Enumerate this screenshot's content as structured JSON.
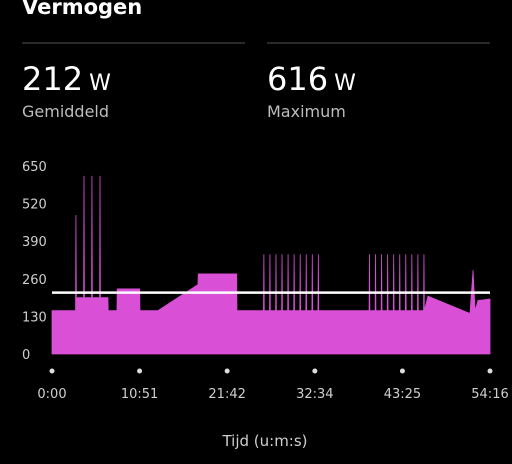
{
  "header": {
    "title": "Vermogen"
  },
  "stats": [
    {
      "value": 212,
      "unit": "W",
      "label": "Gemiddeld"
    },
    {
      "value": 616,
      "unit": "W",
      "label": "Maximum"
    }
  ],
  "chart_data": {
    "type": "area",
    "color": "#d94fd6",
    "x_label": "Tijd (u:m:s)",
    "xlim": [
      0,
      3256
    ],
    "xticks": [
      {
        "value": 0,
        "label": "0:00"
      },
      {
        "value": 651,
        "label": "10:51"
      },
      {
        "value": 1302,
        "label": "21:42"
      },
      {
        "value": 1954,
        "label": "32:34"
      },
      {
        "value": 2605,
        "label": "43:25"
      },
      {
        "value": 3256,
        "label": "54:16"
      }
    ],
    "ylim": [
      0,
      650
    ],
    "yticks": [
      0,
      130,
      260,
      390,
      520,
      650
    ],
    "x": [
      0,
      175,
      178,
      181,
      235,
      238,
      241,
      294,
      297,
      300,
      354,
      357,
      360,
      416,
      418,
      483,
      485,
      652,
      654,
      788,
      1085,
      1087,
      1373,
      1375,
      1572,
      1575,
      1578,
      1617,
      1620,
      1623,
      1662,
      1665,
      1668,
      1707,
      1710,
      1713,
      1752,
      1755,
      1758,
      1797,
      1800,
      1803,
      1842,
      1845,
      1848,
      1887,
      1890,
      1893,
      1932,
      1935,
      1938,
      1977,
      1980,
      1983,
      2007,
      2342,
      2357,
      2360,
      2363,
      2402,
      2405,
      2408,
      2447,
      2450,
      2453,
      2492,
      2495,
      2498,
      2537,
      2540,
      2543,
      2582,
      2585,
      2588,
      2627,
      2630,
      2633,
      2672,
      2675,
      2678,
      2717,
      2720,
      2723,
      2762,
      2765,
      2768,
      2795,
      3107,
      3130,
      3145,
      3167,
      3256
    ],
    "values": [
      150,
      150,
      480,
      195,
      195,
      616,
      195,
      195,
      616,
      195,
      195,
      616,
      195,
      195,
      150,
      150,
      225,
      225,
      150,
      150,
      240,
      277,
      277,
      150,
      150,
      345,
      150,
      150,
      345,
      150,
      150,
      345,
      150,
      150,
      345,
      150,
      150,
      345,
      150,
      150,
      345,
      150,
      150,
      345,
      150,
      150,
      345,
      150,
      150,
      345,
      150,
      150,
      345,
      150,
      150,
      150,
      150,
      345,
      150,
      150,
      345,
      150,
      150,
      345,
      150,
      150,
      345,
      150,
      150,
      345,
      150,
      150,
      345,
      150,
      150,
      345,
      150,
      150,
      345,
      150,
      150,
      345,
      150,
      150,
      345,
      150,
      200,
      140,
      290,
      150,
      185,
      190
    ]
  }
}
